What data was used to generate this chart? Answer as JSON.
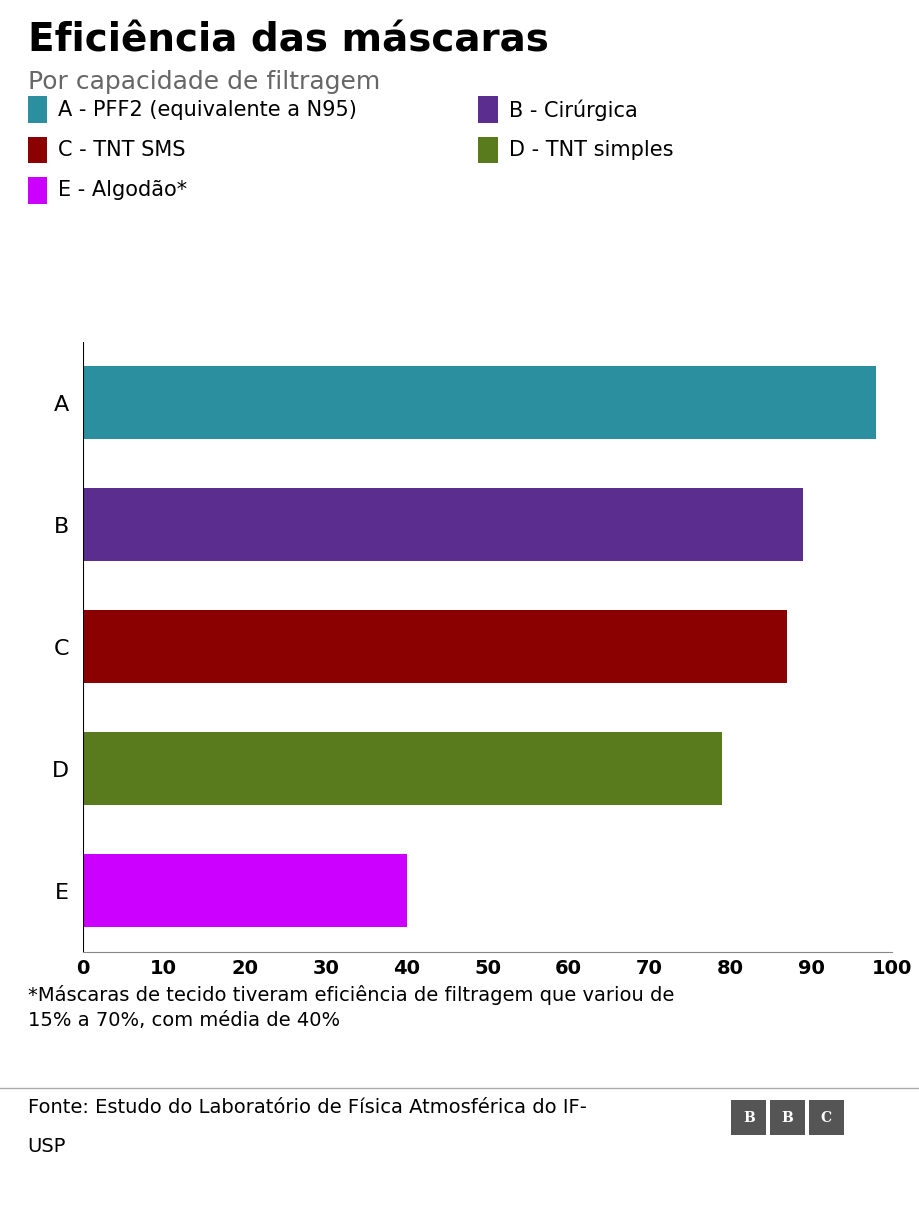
{
  "title": "Eficiência das máscaras",
  "subtitle": "Por capacidade de filtragem",
  "categories": [
    "A",
    "B",
    "C",
    "D",
    "E"
  ],
  "values": [
    98,
    89,
    87,
    79,
    40
  ],
  "colors": [
    "#2b8fa0",
    "#5b2d8e",
    "#8b0000",
    "#5a7a1e",
    "#cc00ff"
  ],
  "legend_items": [
    {
      "label": "A - PFF2 (equivalente a N95)",
      "color": "#2b8fa0"
    },
    {
      "label": "B - Cirúrgica",
      "color": "#5b2d8e"
    },
    {
      "label": "C - TNT SMS",
      "color": "#8b0000"
    },
    {
      "label": "D - TNT simples",
      "color": "#5a7a1e"
    },
    {
      "label": "E - Algodão*",
      "color": "#cc00ff"
    }
  ],
  "xlim": [
    0,
    100
  ],
  "xticks": [
    0,
    10,
    20,
    30,
    40,
    50,
    60,
    70,
    80,
    90,
    100
  ],
  "footnote": "*Máscaras de tecido tiveram eficiência de filtragem que variou de\n15% a 70%, com média de 40%",
  "source_line1": "Fonte: Estudo do Laboratório de Física Atmosférica do IF-",
  "source_line2": "USP",
  "title_fontsize": 28,
  "subtitle_fontsize": 18,
  "tick_fontsize": 14,
  "label_fontsize": 16,
  "legend_fontsize": 15,
  "footnote_fontsize": 14,
  "source_fontsize": 14,
  "background_color": "#ffffff",
  "tick_label_color": "#000000",
  "subtitle_color": "#666666",
  "bar_height": 0.6
}
